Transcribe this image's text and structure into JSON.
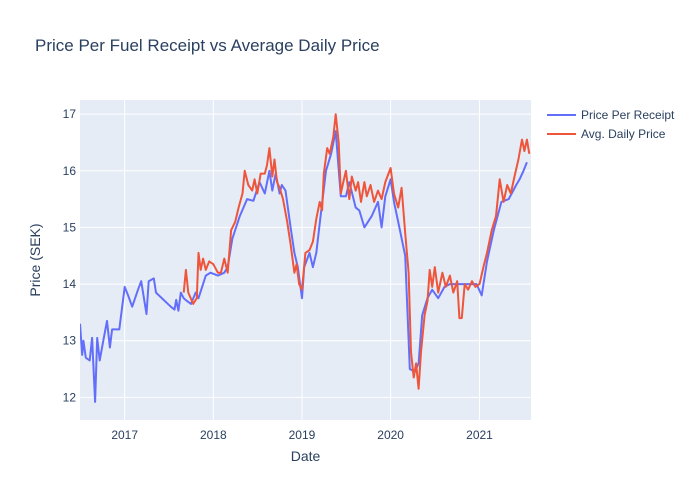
{
  "chart_data": {
    "type": "line",
    "title": "Price Per Fuel Receipt vs Average Daily Price",
    "xlabel": "Date",
    "ylabel": "Price (SEK)",
    "x_ticks": [
      "2017",
      "2018",
      "2019",
      "2020",
      "2021"
    ],
    "y_ticks": [
      "12",
      "13",
      "14",
      "15",
      "16",
      "17"
    ],
    "xlim": [
      "2016-07-01",
      "2021-08-01"
    ],
    "ylim": [
      11.6,
      17.25
    ],
    "grid": true,
    "legend_position": "top-right",
    "series": [
      {
        "name": "Price Per Receipt",
        "color": "#636efa",
        "points": [
          [
            "2016-07-01",
            13.3
          ],
          [
            "2016-07-10",
            12.75
          ],
          [
            "2016-07-15",
            13.0
          ],
          [
            "2016-07-25",
            12.7
          ],
          [
            "2016-08-10",
            12.65
          ],
          [
            "2016-08-20",
            13.05
          ],
          [
            "2016-09-01",
            11.92
          ],
          [
            "2016-09-10",
            13.05
          ],
          [
            "2016-09-20",
            12.65
          ],
          [
            "2016-10-05",
            13.0
          ],
          [
            "2016-10-20",
            13.35
          ],
          [
            "2016-11-01",
            12.88
          ],
          [
            "2016-11-10",
            13.2
          ],
          [
            "2016-12-10",
            13.2
          ],
          [
            "2017-01-01",
            13.95
          ],
          [
            "2017-01-15",
            13.8
          ],
          [
            "2017-02-01",
            13.6
          ],
          [
            "2017-02-25",
            13.9
          ],
          [
            "2017-03-10",
            14.05
          ],
          [
            "2017-04-01",
            13.47
          ],
          [
            "2017-04-10",
            14.05
          ],
          [
            "2017-05-01",
            14.1
          ],
          [
            "2017-05-10",
            13.85
          ],
          [
            "2017-07-10",
            13.6
          ],
          [
            "2017-07-25",
            13.55
          ],
          [
            "2017-08-01",
            13.72
          ],
          [
            "2017-08-10",
            13.53
          ],
          [
            "2017-08-20",
            13.85
          ],
          [
            "2017-09-01",
            13.75
          ],
          [
            "2017-09-15",
            13.7
          ],
          [
            "2017-10-01",
            13.65
          ],
          [
            "2017-10-20",
            13.85
          ],
          [
            "2017-11-01",
            13.75
          ],
          [
            "2017-12-01",
            14.15
          ],
          [
            "2017-12-20",
            14.2
          ],
          [
            "2018-01-20",
            14.15
          ],
          [
            "2018-02-15",
            14.2
          ],
          [
            "2018-03-01",
            14.3
          ],
          [
            "2018-03-20",
            14.8
          ],
          [
            "2018-04-20",
            15.2
          ],
          [
            "2018-05-20",
            15.5
          ],
          [
            "2018-06-15",
            15.47
          ],
          [
            "2018-07-10",
            15.8
          ],
          [
            "2018-08-01",
            15.6
          ],
          [
            "2018-08-20",
            16.0
          ],
          [
            "2018-09-01",
            15.65
          ],
          [
            "2018-09-15",
            15.95
          ],
          [
            "2018-10-01",
            15.6
          ],
          [
            "2018-10-10",
            15.75
          ],
          [
            "2018-10-25",
            15.65
          ],
          [
            "2018-11-15",
            15.0
          ],
          [
            "2018-12-01",
            14.55
          ],
          [
            "2018-12-15",
            14.3
          ],
          [
            "2019-01-01",
            13.75
          ],
          [
            "2019-01-10",
            14.3
          ],
          [
            "2019-02-01",
            14.55
          ],
          [
            "2019-02-15",
            14.3
          ],
          [
            "2019-03-01",
            14.55
          ],
          [
            "2019-03-20",
            15.25
          ],
          [
            "2019-04-10",
            16.0
          ],
          [
            "2019-05-01",
            16.3
          ],
          [
            "2019-05-20",
            16.7
          ],
          [
            "2019-06-10",
            15.55
          ],
          [
            "2019-07-01",
            15.55
          ],
          [
            "2019-07-15",
            15.8
          ],
          [
            "2019-08-10",
            15.35
          ],
          [
            "2019-08-25",
            15.3
          ],
          [
            "2019-09-15",
            15.0
          ],
          [
            "2019-10-15",
            15.2
          ],
          [
            "2019-11-10",
            15.45
          ],
          [
            "2019-11-25",
            15.0
          ],
          [
            "2019-12-10",
            15.55
          ],
          [
            "2020-01-01",
            15.85
          ],
          [
            "2020-01-15",
            15.45
          ],
          [
            "2020-02-01",
            15.1
          ],
          [
            "2020-03-01",
            14.5
          ],
          [
            "2020-03-20",
            12.5
          ],
          [
            "2020-04-10",
            12.45
          ],
          [
            "2020-04-25",
            12.6
          ],
          [
            "2020-05-10",
            13.45
          ],
          [
            "2020-06-01",
            13.75
          ],
          [
            "2020-06-20",
            13.9
          ],
          [
            "2020-07-15",
            13.75
          ],
          [
            "2020-08-10",
            13.95
          ],
          [
            "2020-09-01",
            14.0
          ],
          [
            "2020-10-15",
            14.0
          ],
          [
            "2020-11-01",
            14.0
          ],
          [
            "2020-12-01",
            14.0
          ],
          [
            "2020-12-20",
            14.0
          ],
          [
            "2021-01-10",
            13.8
          ],
          [
            "2021-02-01",
            14.4
          ],
          [
            "2021-03-01",
            14.95
          ],
          [
            "2021-04-01",
            15.45
          ],
          [
            "2021-05-01",
            15.5
          ],
          [
            "2021-06-01",
            15.75
          ],
          [
            "2021-06-15",
            15.85
          ],
          [
            "2021-07-01",
            16.0
          ],
          [
            "2021-07-15",
            16.15
          ]
        ]
      },
      {
        "name": "Avg. Daily Price",
        "color": "#ef553b",
        "points": [
          [
            "2017-09-01",
            13.85
          ],
          [
            "2017-09-10",
            14.25
          ],
          [
            "2017-09-20",
            13.85
          ],
          [
            "2017-10-10",
            13.65
          ],
          [
            "2017-10-25",
            13.75
          ],
          [
            "2017-11-01",
            14.55
          ],
          [
            "2017-11-10",
            14.25
          ],
          [
            "2017-11-20",
            14.45
          ],
          [
            "2017-12-01",
            14.25
          ],
          [
            "2017-12-15",
            14.4
          ],
          [
            "2018-01-01",
            14.35
          ],
          [
            "2018-01-20",
            14.2
          ],
          [
            "2018-02-01",
            14.2
          ],
          [
            "2018-02-15",
            14.45
          ],
          [
            "2018-03-01",
            14.2
          ],
          [
            "2018-03-15",
            14.95
          ],
          [
            "2018-04-01",
            15.1
          ],
          [
            "2018-04-15",
            15.35
          ],
          [
            "2018-05-01",
            15.6
          ],
          [
            "2018-05-10",
            16.0
          ],
          [
            "2018-05-25",
            15.75
          ],
          [
            "2018-06-10",
            15.65
          ],
          [
            "2018-06-20",
            15.85
          ],
          [
            "2018-07-01",
            15.6
          ],
          [
            "2018-07-15",
            15.95
          ],
          [
            "2018-08-01",
            15.95
          ],
          [
            "2018-08-10",
            16.1
          ],
          [
            "2018-08-20",
            16.4
          ],
          [
            "2018-09-01",
            15.9
          ],
          [
            "2018-09-10",
            16.2
          ],
          [
            "2018-09-20",
            15.8
          ],
          [
            "2018-10-01",
            15.7
          ],
          [
            "2018-10-15",
            15.5
          ],
          [
            "2018-11-01",
            15.1
          ],
          [
            "2018-11-15",
            14.7
          ],
          [
            "2018-12-01",
            14.2
          ],
          [
            "2018-12-10",
            14.35
          ],
          [
            "2018-12-20",
            14.0
          ],
          [
            "2019-01-01",
            13.9
          ],
          [
            "2019-01-15",
            14.55
          ],
          [
            "2019-02-01",
            14.6
          ],
          [
            "2019-02-15",
            14.75
          ],
          [
            "2019-03-01",
            15.15
          ],
          [
            "2019-03-15",
            15.45
          ],
          [
            "2019-03-25",
            15.3
          ],
          [
            "2019-04-01",
            15.95
          ],
          [
            "2019-04-15",
            16.4
          ],
          [
            "2019-04-25",
            16.3
          ],
          [
            "2019-05-10",
            16.6
          ],
          [
            "2019-05-20",
            17.0
          ],
          [
            "2019-06-01",
            16.5
          ],
          [
            "2019-06-10",
            15.6
          ],
          [
            "2019-06-20",
            15.8
          ],
          [
            "2019-07-01",
            16.0
          ],
          [
            "2019-07-15",
            15.5
          ],
          [
            "2019-07-25",
            15.9
          ],
          [
            "2019-08-10",
            15.65
          ],
          [
            "2019-08-20",
            15.8
          ],
          [
            "2019-09-01",
            15.45
          ],
          [
            "2019-09-15",
            15.8
          ],
          [
            "2019-09-25",
            15.55
          ],
          [
            "2019-10-10",
            15.75
          ],
          [
            "2019-10-25",
            15.45
          ],
          [
            "2019-11-10",
            15.65
          ],
          [
            "2019-11-25",
            15.5
          ],
          [
            "2019-12-10",
            15.8
          ],
          [
            "2020-01-01",
            16.05
          ],
          [
            "2020-01-15",
            15.6
          ],
          [
            "2020-02-01",
            15.35
          ],
          [
            "2020-02-15",
            15.7
          ],
          [
            "2020-03-01",
            14.9
          ],
          [
            "2020-03-15",
            14.2
          ],
          [
            "2020-03-25",
            12.8
          ],
          [
            "2020-04-05",
            12.35
          ],
          [
            "2020-04-15",
            12.6
          ],
          [
            "2020-04-25",
            12.15
          ],
          [
            "2020-05-05",
            12.8
          ],
          [
            "2020-05-20",
            13.45
          ],
          [
            "2020-06-01",
            13.7
          ],
          [
            "2020-06-10",
            14.25
          ],
          [
            "2020-06-20",
            13.95
          ],
          [
            "2020-07-01",
            14.3
          ],
          [
            "2020-07-15",
            13.85
          ],
          [
            "2020-08-01",
            14.2
          ],
          [
            "2020-08-15",
            13.95
          ],
          [
            "2020-09-01",
            14.15
          ],
          [
            "2020-09-15",
            13.85
          ],
          [
            "2020-10-01",
            14.05
          ],
          [
            "2020-10-10",
            13.4
          ],
          [
            "2020-10-20",
            13.4
          ],
          [
            "2020-11-01",
            14.0
          ],
          [
            "2020-11-15",
            13.9
          ],
          [
            "2020-12-01",
            14.05
          ],
          [
            "2020-12-15",
            13.95
          ],
          [
            "2021-01-01",
            14.0
          ],
          [
            "2021-01-20",
            14.35
          ],
          [
            "2021-02-01",
            14.55
          ],
          [
            "2021-02-20",
            14.95
          ],
          [
            "2021-03-10",
            15.2
          ],
          [
            "2021-03-25",
            15.85
          ],
          [
            "2021-04-10",
            15.45
          ],
          [
            "2021-04-25",
            15.75
          ],
          [
            "2021-05-10",
            15.6
          ],
          [
            "2021-05-25",
            15.9
          ],
          [
            "2021-06-10",
            16.2
          ],
          [
            "2021-06-25",
            16.55
          ],
          [
            "2021-07-05",
            16.35
          ],
          [
            "2021-07-15",
            16.55
          ],
          [
            "2021-07-25",
            16.3
          ]
        ]
      }
    ]
  }
}
